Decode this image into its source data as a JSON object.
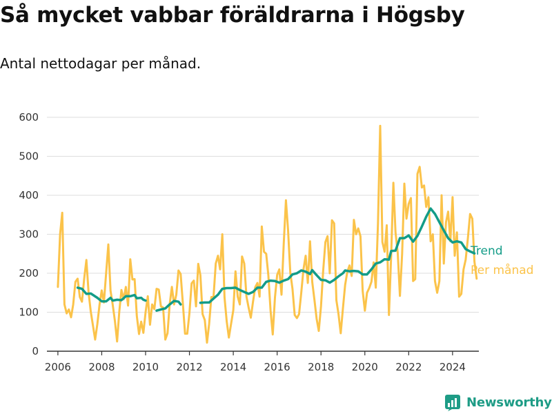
{
  "title": "Så mycket vabbar föräldrarna i Högsby",
  "subtitle": "Antal nettodagar per månad.",
  "brand": "Newsworthy",
  "colors": {
    "monthly": "#fbc34a",
    "trend": "#139c88",
    "grid": "#dddddd",
    "axis": "#333333",
    "brand": "#1e9c86"
  },
  "chart_data": {
    "type": "line",
    "x_unit": "decimal year (monthly data)",
    "xlim": [
      2005.5,
      2025.2
    ],
    "ylim": [
      0,
      600
    ],
    "y_ticks": [
      "0",
      "100",
      "200",
      "300",
      "400",
      "500",
      "600"
    ],
    "x_ticks": [
      "2006",
      "2008",
      "2010",
      "2012",
      "2014",
      "2016",
      "2018",
      "2020",
      "2022",
      "2024"
    ],
    "grid": "horizontal",
    "series": [
      {
        "name": "Trend",
        "color": "#139c88",
        "segments": [
          [
            [
              2006.9,
              163
            ],
            [
              2007.1,
              160
            ],
            [
              2007.3,
              147
            ],
            [
              2007.5,
              148
            ],
            [
              2007.8,
              137
            ],
            [
              2008.0,
              128
            ],
            [
              2008.2,
              128
            ],
            [
              2008.4,
              137
            ],
            [
              2008.5,
              130
            ],
            [
              2008.7,
              132
            ],
            [
              2008.9,
              131
            ],
            [
              2009.1,
              141
            ],
            [
              2009.3,
              141
            ],
            [
              2009.5,
              144
            ],
            [
              2009.6,
              136
            ],
            [
              2009.8,
              137
            ],
            [
              2009.9,
              132
            ],
            [
              2010.0,
              130
            ]
          ],
          [
            [
              2010.5,
              104
            ],
            [
              2010.7,
              107
            ],
            [
              2010.9,
              110
            ],
            [
              2011.1,
              120
            ],
            [
              2011.3,
              129
            ],
            [
              2011.5,
              127
            ],
            [
              2011.6,
              120
            ]
          ],
          [
            [
              2012.5,
              124
            ],
            [
              2012.7,
              125
            ],
            [
              2012.9,
              125
            ],
            [
              2013.1,
              135
            ],
            [
              2013.3,
              145
            ],
            [
              2013.5,
              160
            ],
            [
              2013.7,
              162
            ],
            [
              2013.9,
              162
            ],
            [
              2014.1,
              163
            ],
            [
              2014.3,
              157
            ],
            [
              2014.5,
              152
            ],
            [
              2014.7,
              147
            ],
            [
              2014.9,
              152
            ],
            [
              2015.1,
              163
            ],
            [
              2015.3,
              163
            ],
            [
              2015.5,
              178
            ],
            [
              2015.7,
              181
            ],
            [
              2015.9,
              180
            ],
            [
              2016.1,
              176
            ],
            [
              2016.3,
              181
            ],
            [
              2016.5,
              185
            ],
            [
              2016.7,
              197
            ],
            [
              2016.9,
              200
            ],
            [
              2017.1,
              207
            ],
            [
              2017.3,
              204
            ],
            [
              2017.5,
              198
            ],
            [
              2017.6,
              208
            ],
            [
              2017.8,
              195
            ],
            [
              2018.0,
              183
            ],
            [
              2018.2,
              182
            ],
            [
              2018.4,
              176
            ],
            [
              2018.6,
              183
            ],
            [
              2018.8,
              192
            ],
            [
              2019.0,
              200
            ],
            [
              2019.1,
              207
            ],
            [
              2019.3,
              205
            ],
            [
              2019.5,
              206
            ],
            [
              2019.7,
              205
            ],
            [
              2019.9,
              197
            ],
            [
              2020.1,
              197
            ],
            [
              2020.3,
              210
            ],
            [
              2020.5,
              225
            ],
            [
              2020.7,
              228
            ],
            [
              2020.9,
              236
            ],
            [
              2021.1,
              235
            ],
            [
              2021.2,
              257
            ],
            [
              2021.4,
              258
            ],
            [
              2021.6,
              290
            ],
            [
              2021.8,
              290
            ],
            [
              2022.0,
              297
            ],
            [
              2022.2,
              281
            ],
            [
              2022.4,
              296
            ],
            [
              2022.6,
              320
            ],
            [
              2022.8,
              345
            ],
            [
              2023.0,
              366
            ],
            [
              2023.2,
              352
            ],
            [
              2023.4,
              331
            ],
            [
              2023.6,
              310
            ],
            [
              2023.8,
              290
            ],
            [
              2024.0,
              279
            ],
            [
              2024.2,
              282
            ],
            [
              2024.4,
              279
            ],
            [
              2024.6,
              262
            ],
            [
              2024.8,
              256
            ],
            [
              2025.0,
              251
            ]
          ]
        ]
      },
      {
        "name": "Per månad",
        "color": "#fbc34a",
        "values": [
          [
            2006.0,
            165
          ],
          [
            2006.1,
            300
          ],
          [
            2006.2,
            355
          ],
          [
            2006.3,
            120
          ],
          [
            2006.4,
            97
          ],
          [
            2006.5,
            107
          ],
          [
            2006.6,
            87
          ],
          [
            2006.7,
            120
          ],
          [
            2006.8,
            178
          ],
          [
            2006.9,
            186
          ],
          [
            2007.0,
            139
          ],
          [
            2007.1,
            127
          ],
          [
            2007.2,
            186
          ],
          [
            2007.3,
            234
          ],
          [
            2007.4,
            150
          ],
          [
            2007.5,
            101
          ],
          [
            2007.6,
            66
          ],
          [
            2007.7,
            30
          ],
          [
            2007.8,
            70
          ],
          [
            2007.9,
            120
          ],
          [
            2008.0,
            156
          ],
          [
            2008.1,
            125
          ],
          [
            2008.2,
            200
          ],
          [
            2008.3,
            274
          ],
          [
            2008.4,
            155
          ],
          [
            2008.5,
            120
          ],
          [
            2008.6,
            78
          ],
          [
            2008.7,
            25
          ],
          [
            2008.8,
            102
          ],
          [
            2008.9,
            157
          ],
          [
            2009.0,
            133
          ],
          [
            2009.1,
            165
          ],
          [
            2009.2,
            117
          ],
          [
            2009.3,
            236
          ],
          [
            2009.4,
            184
          ],
          [
            2009.5,
            185
          ],
          [
            2009.6,
            90
          ],
          [
            2009.7,
            44
          ],
          [
            2009.8,
            76
          ],
          [
            2009.9,
            47
          ],
          [
            2010.0,
            100
          ],
          [
            2010.1,
            141
          ],
          [
            2010.2,
            68
          ],
          [
            2010.3,
            120
          ],
          [
            2010.4,
            108
          ],
          [
            2010.5,
            160
          ],
          [
            2010.6,
            158
          ],
          [
            2010.7,
            115
          ],
          [
            2010.8,
            112
          ],
          [
            2010.9,
            30
          ],
          [
            2011.0,
            46
          ],
          [
            2011.1,
            120
          ],
          [
            2011.2,
            165
          ],
          [
            2011.3,
            120
          ],
          [
            2011.4,
            145
          ],
          [
            2011.5,
            207
          ],
          [
            2011.6,
            198
          ],
          [
            2011.7,
            123
          ],
          [
            2011.8,
            45
          ],
          [
            2011.9,
            45
          ],
          [
            2012.0,
            97
          ],
          [
            2012.1,
            174
          ],
          [
            2012.2,
            181
          ],
          [
            2012.3,
            115
          ],
          [
            2012.4,
            224
          ],
          [
            2012.5,
            195
          ],
          [
            2012.6,
            95
          ],
          [
            2012.7,
            80
          ],
          [
            2012.8,
            22
          ],
          [
            2012.9,
            70
          ],
          [
            2013.0,
            139
          ],
          [
            2013.1,
            140
          ],
          [
            2013.2,
            225
          ],
          [
            2013.3,
            245
          ],
          [
            2013.4,
            210
          ],
          [
            2013.5,
            300
          ],
          [
            2013.6,
            138
          ],
          [
            2013.7,
            76
          ],
          [
            2013.8,
            35
          ],
          [
            2013.9,
            70
          ],
          [
            2014.0,
            105
          ],
          [
            2014.1,
            205
          ],
          [
            2014.2,
            140
          ],
          [
            2014.3,
            120
          ],
          [
            2014.4,
            243
          ],
          [
            2014.5,
            225
          ],
          [
            2014.6,
            140
          ],
          [
            2014.7,
            112
          ],
          [
            2014.8,
            86
          ],
          [
            2014.9,
            127
          ],
          [
            2015.0,
            164
          ],
          [
            2015.1,
            175
          ],
          [
            2015.2,
            140
          ],
          [
            2015.3,
            320
          ],
          [
            2015.4,
            255
          ],
          [
            2015.5,
            250
          ],
          [
            2015.6,
            195
          ],
          [
            2015.7,
            105
          ],
          [
            2015.8,
            43
          ],
          [
            2015.9,
            138
          ],
          [
            2016.0,
            196
          ],
          [
            2016.1,
            210
          ],
          [
            2016.2,
            145
          ],
          [
            2016.3,
            275
          ],
          [
            2016.4,
            387
          ],
          [
            2016.5,
            310
          ],
          [
            2016.6,
            202
          ],
          [
            2016.7,
            160
          ],
          [
            2016.8,
            93
          ],
          [
            2016.9,
            85
          ],
          [
            2017.0,
            95
          ],
          [
            2017.1,
            150
          ],
          [
            2017.2,
            210
          ],
          [
            2017.3,
            245
          ],
          [
            2017.4,
            175
          ],
          [
            2017.5,
            282
          ],
          [
            2017.6,
            178
          ],
          [
            2017.7,
            132
          ],
          [
            2017.8,
            83
          ],
          [
            2017.9,
            52
          ],
          [
            2018.0,
            115
          ],
          [
            2018.1,
            207
          ],
          [
            2018.2,
            280
          ],
          [
            2018.3,
            295
          ],
          [
            2018.4,
            200
          ],
          [
            2018.5,
            336
          ],
          [
            2018.6,
            328
          ],
          [
            2018.7,
            131
          ],
          [
            2018.8,
            95
          ],
          [
            2018.9,
            46
          ],
          [
            2019.0,
            110
          ],
          [
            2019.1,
            170
          ],
          [
            2019.2,
            203
          ],
          [
            2019.3,
            220
          ],
          [
            2019.4,
            193
          ],
          [
            2019.5,
            337
          ],
          [
            2019.6,
            300
          ],
          [
            2019.7,
            315
          ],
          [
            2019.8,
            295
          ],
          [
            2019.9,
            155
          ],
          [
            2020.0,
            104
          ],
          [
            2020.1,
            150
          ],
          [
            2020.2,
            162
          ],
          [
            2020.3,
            178
          ],
          [
            2020.4,
            228
          ],
          [
            2020.5,
            163
          ],
          [
            2020.6,
            328
          ],
          [
            2020.7,
            578
          ],
          [
            2020.8,
            280
          ],
          [
            2020.9,
            255
          ],
          [
            2021.0,
            323
          ],
          [
            2021.1,
            93
          ],
          [
            2021.2,
            245
          ],
          [
            2021.3,
            432
          ],
          [
            2021.4,
            305
          ],
          [
            2021.5,
            253
          ],
          [
            2021.6,
            142
          ],
          [
            2021.7,
            250
          ],
          [
            2021.8,
            430
          ],
          [
            2021.9,
            340
          ],
          [
            2022.0,
            378
          ],
          [
            2022.1,
            393
          ],
          [
            2022.2,
            180
          ],
          [
            2022.3,
            185
          ],
          [
            2022.4,
            455
          ],
          [
            2022.5,
            473
          ],
          [
            2022.6,
            420
          ],
          [
            2022.7,
            425
          ],
          [
            2022.8,
            370
          ],
          [
            2022.9,
            395
          ],
          [
            2023.0,
            282
          ],
          [
            2023.1,
            300
          ],
          [
            2023.2,
            180
          ],
          [
            2023.3,
            150
          ],
          [
            2023.4,
            180
          ],
          [
            2023.5,
            400
          ],
          [
            2023.6,
            225
          ],
          [
            2023.7,
            330
          ],
          [
            2023.8,
            358
          ],
          [
            2023.9,
            282
          ],
          [
            2024.0,
            395
          ],
          [
            2024.1,
            245
          ],
          [
            2024.2,
            305
          ],
          [
            2024.3,
            140
          ],
          [
            2024.4,
            147
          ],
          [
            2024.5,
            210
          ],
          [
            2024.6,
            235
          ],
          [
            2024.7,
            290
          ],
          [
            2024.8,
            352
          ],
          [
            2024.9,
            340
          ],
          [
            2025.0,
            230
          ],
          [
            2025.1,
            186
          ]
        ]
      }
    ]
  }
}
